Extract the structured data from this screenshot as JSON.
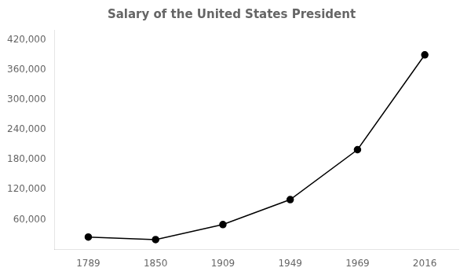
{
  "chart_data": {
    "type": "line",
    "title": "Salary of the United States President",
    "categories": [
      "1789",
      "1850",
      "1909",
      "1949",
      "1969",
      "2016"
    ],
    "values": [
      25000,
      20000,
      50000,
      100000,
      200000,
      390000
    ],
    "color": "#000000",
    "marker": "circle",
    "ylim": [
      0,
      440000
    ],
    "yticks": [
      {
        "value": 60000,
        "label": "60,000"
      },
      {
        "value": 120000,
        "label": "120,000"
      },
      {
        "value": 180000,
        "label": "180,000"
      },
      {
        "value": 240000,
        "label": "240,000"
      },
      {
        "value": 300000,
        "label": "300,000"
      },
      {
        "value": 360000,
        "label": "360,000"
      },
      {
        "value": 420000,
        "label": "420,000"
      }
    ],
    "grid": false
  }
}
